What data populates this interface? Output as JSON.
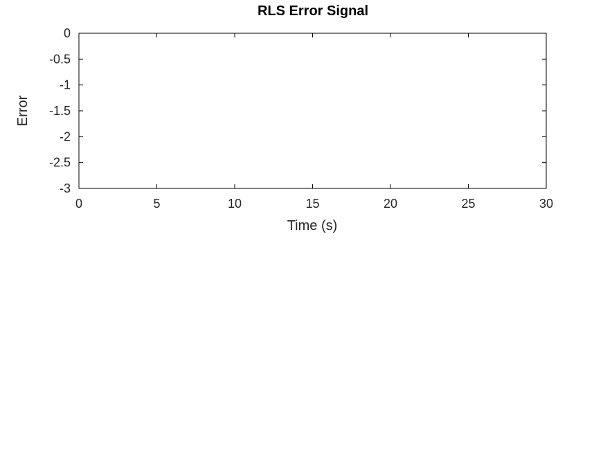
{
  "chart_data": {
    "type": "line",
    "title": "RLS Error Signal",
    "xlabel": "Time (s)",
    "ylabel": "Error",
    "xlim": [
      0,
      30
    ],
    "ylim": [
      -3,
      0
    ],
    "xticks": [
      0,
      5,
      10,
      15,
      20,
      25,
      30
    ],
    "yticks": [
      0,
      -0.5,
      -1,
      -1.5,
      -2,
      -2.5,
      -3
    ],
    "xtick_labels": [
      "0",
      "5",
      "10",
      "15",
      "20",
      "25",
      "30"
    ],
    "ytick_labels": [
      "0",
      "-0.5",
      "-1",
      "-1.5",
      "-2",
      "-2.5",
      "-3"
    ],
    "series": [],
    "grid": false,
    "colors": {
      "axis": "#000000",
      "text": "#262626"
    }
  }
}
